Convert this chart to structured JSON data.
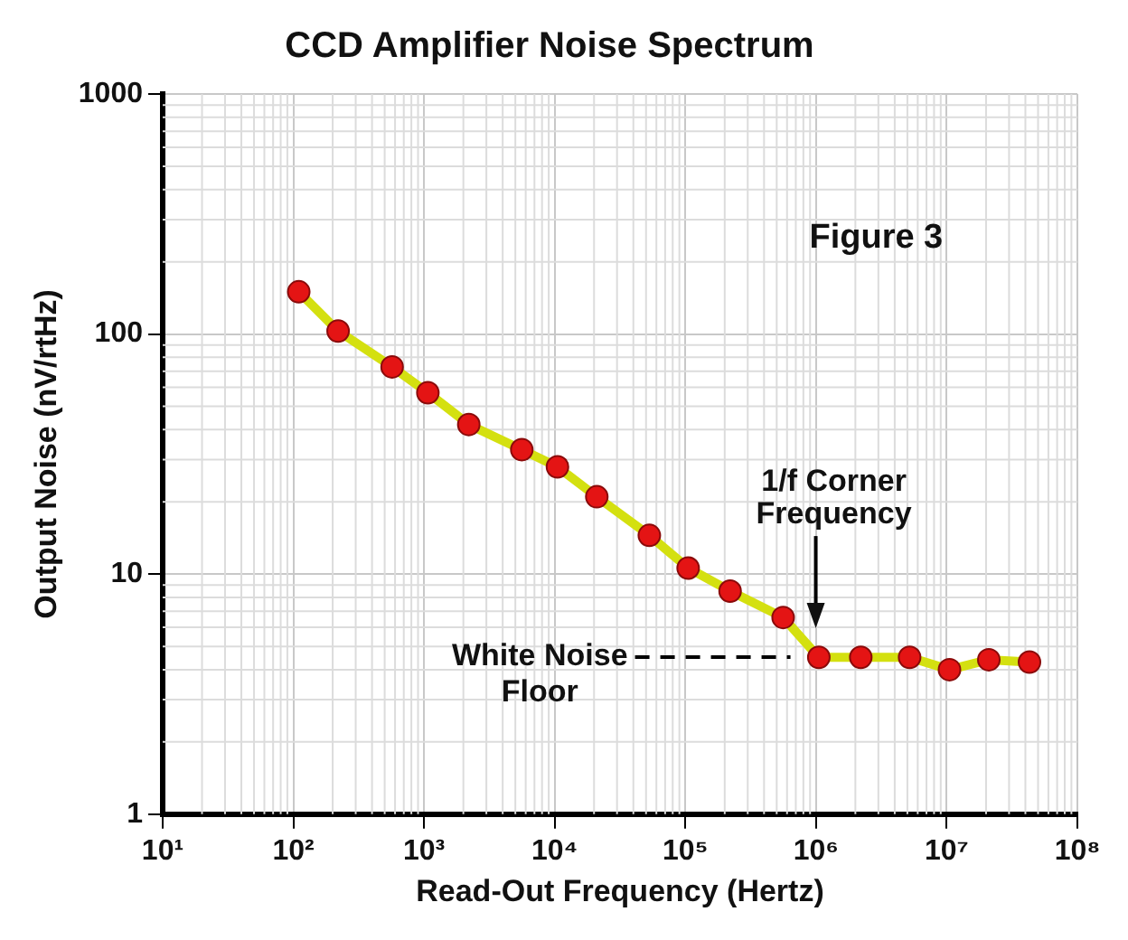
{
  "chart_data": {
    "type": "line",
    "title": "CCD Amplifier Noise Spectrum",
    "xlabel": "Read-Out Frequency (Hertz)",
    "ylabel": "Output Noise (nV/rtHz)",
    "x": [
      110,
      220,
      570,
      1070,
      2200,
      5600,
      10500,
      21000,
      53000,
      105000,
      220000,
      560000,
      1050000,
      2200000,
      5200000,
      10500000,
      21000000,
      43000000
    ],
    "series": [
      {
        "color": "#d4e010",
        "values": [
          150,
          103,
          73,
          57,
          42,
          33,
          28,
          21,
          14.5,
          10.6,
          8.5,
          6.6,
          4.5,
          4.5,
          4.5,
          4.0,
          4.4,
          4.3
        ]
      }
    ],
    "log": "xy",
    "xlim": [
      10,
      100000000
    ],
    "ylim": [
      1,
      1000
    ],
    "xticks": [
      {
        "value": 10,
        "label": "10¹"
      },
      {
        "value": 100,
        "label": "10²"
      },
      {
        "value": 1000,
        "label": "10³"
      },
      {
        "value": 10000,
        "label": "10⁴"
      },
      {
        "value": 100000,
        "label": "10⁵"
      },
      {
        "value": 1000000,
        "label": "10⁶"
      },
      {
        "value": 10000000,
        "label": "10⁷"
      },
      {
        "value": 100000000,
        "label": "10⁸"
      }
    ],
    "yticks": [
      1,
      10,
      100,
      1000
    ],
    "grid": true,
    "marker": "circle",
    "line_style": "solid",
    "legend": false,
    "annotations": [
      "Figure 3",
      "1/f Corner Frequency",
      "White Noise Floor"
    ]
  }
}
